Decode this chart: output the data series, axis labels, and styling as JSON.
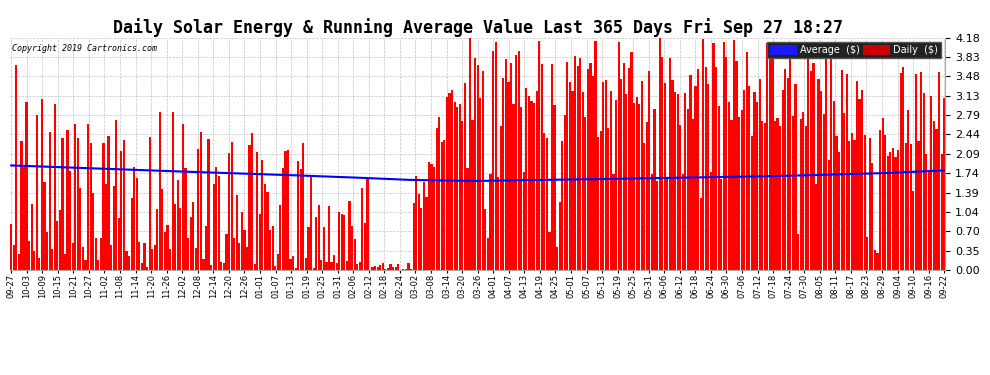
{
  "title": "Daily Solar Energy & Running Average Value Last 365 Days Fri Sep 27 18:27",
  "copyright": "Copyright 2019 Cartronics.com",
  "ylim": [
    0.0,
    4.18
  ],
  "yticks": [
    0.0,
    0.35,
    0.7,
    1.04,
    1.39,
    1.74,
    2.09,
    2.44,
    2.79,
    3.13,
    3.48,
    3.83,
    4.18
  ],
  "bar_color": "#ff0000",
  "avg_color": "#0000ff",
  "bg_color": "#ffffff",
  "grid_color": "#aaaaaa",
  "title_fontsize": 12,
  "legend_avg_label": "Average  ($)",
  "legend_daily_label": "Daily  ($)",
  "x_labels": [
    "09-27",
    "10-03",
    "10-09",
    "10-15",
    "10-21",
    "10-27",
    "11-02",
    "11-08",
    "11-14",
    "11-20",
    "11-26",
    "12-02",
    "12-08",
    "12-14",
    "12-20",
    "12-26",
    "01-01",
    "01-07",
    "01-13",
    "01-19",
    "01-25",
    "01-31",
    "02-06",
    "02-12",
    "02-18",
    "02-24",
    "03-02",
    "03-08",
    "03-14",
    "03-20",
    "03-26",
    "04-01",
    "04-07",
    "04-13",
    "04-19",
    "04-25",
    "05-01",
    "05-07",
    "05-13",
    "05-19",
    "05-25",
    "05-31",
    "06-06",
    "06-12",
    "06-18",
    "06-24",
    "06-30",
    "07-06",
    "07-12",
    "07-18",
    "07-24",
    "07-30",
    "08-05",
    "08-11",
    "08-17",
    "08-23",
    "08-29",
    "09-04",
    "09-10",
    "09-16",
    "09-22"
  ],
  "avg_x_pts": [
    0,
    25,
    60,
    100,
    130,
    155,
    180,
    210,
    250,
    300,
    340,
    364
  ],
  "avg_y_pts": [
    1.88,
    1.84,
    1.78,
    1.72,
    1.67,
    1.62,
    1.6,
    1.62,
    1.65,
    1.69,
    1.74,
    1.79
  ]
}
